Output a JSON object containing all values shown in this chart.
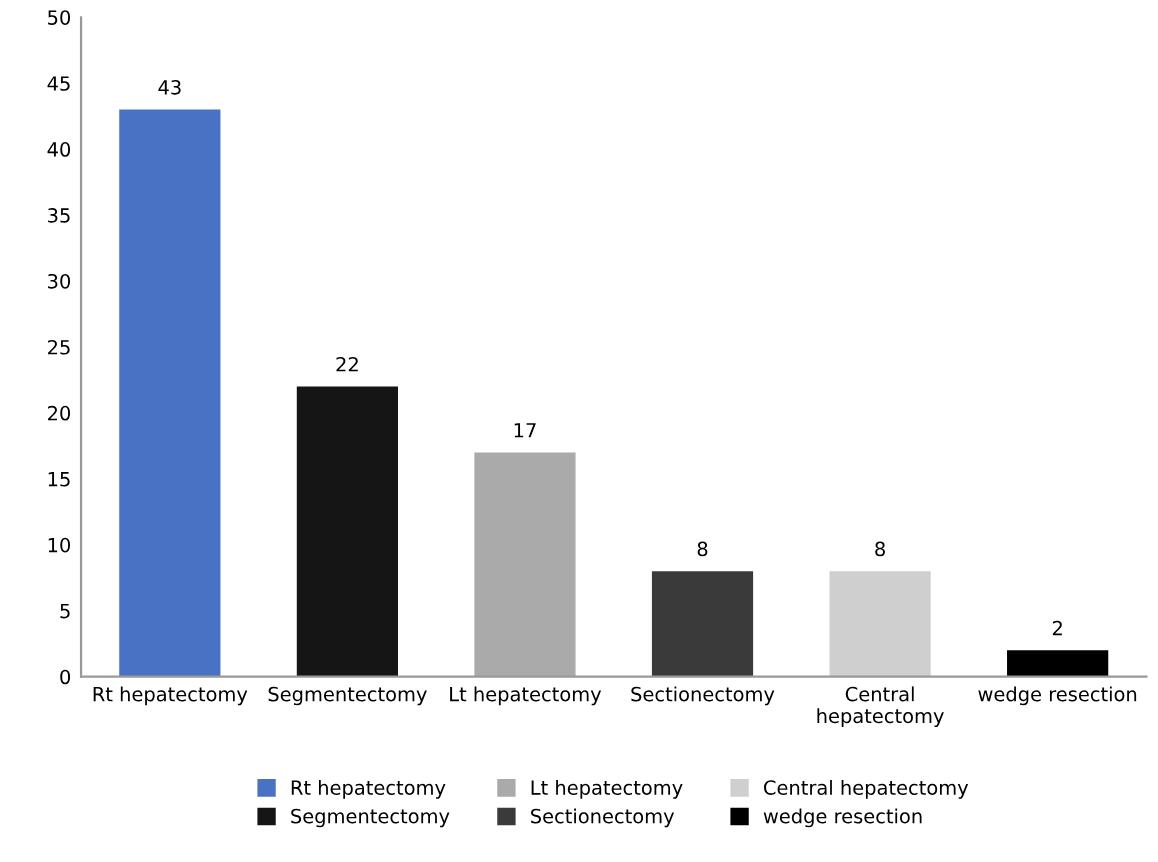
{
  "chart_data": {
    "type": "bar",
    "categories": [
      "Rt hepatectomy",
      "Segmentectomy",
      "Lt hepatectomy",
      "Sectionectomy",
      "Central hepatectomy",
      "wedge resection"
    ],
    "series": [
      {
        "name": "Rt hepatectomy",
        "color": "#4a72c4",
        "values": [
          43,
          null,
          null,
          null,
          null,
          null
        ]
      },
      {
        "name": "Segmentectomy",
        "color": "#151515",
        "values": [
          null,
          22,
          null,
          null,
          null,
          null
        ]
      },
      {
        "name": "Lt hepatectomy",
        "color": "#aaaaaa",
        "values": [
          null,
          null,
          17,
          null,
          null,
          null
        ]
      },
      {
        "name": "Sectionectomy",
        "color": "#3a3a3a",
        "values": [
          null,
          null,
          null,
          8,
          null,
          null
        ]
      },
      {
        "name": "Central hepatectomy",
        "color": "#cfcfcf",
        "values": [
          null,
          null,
          null,
          null,
          8,
          null
        ]
      },
      {
        "name": "wedge resection",
        "color": "#000000",
        "values": [
          null,
          null,
          null,
          null,
          null,
          2
        ]
      }
    ],
    "ylim": [
      0,
      50
    ],
    "yticks": [
      0,
      5,
      10,
      15,
      20,
      25,
      30,
      35,
      40,
      45,
      50
    ],
    "data_labels": true,
    "grid": false,
    "legend": "bottom"
  }
}
